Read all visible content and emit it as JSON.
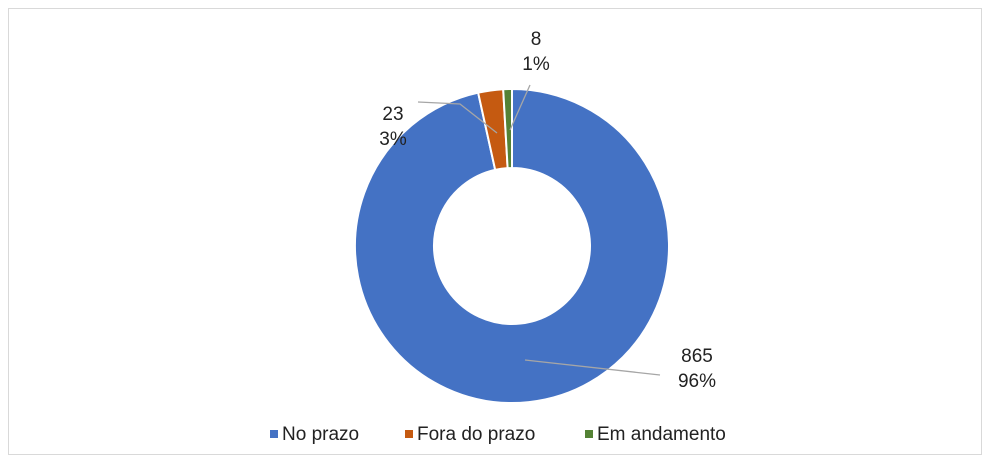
{
  "chart_data": {
    "type": "donut",
    "categories": [
      "No prazo",
      "Fora do prazo",
      "Em andamento"
    ],
    "values": [
      865,
      23,
      8
    ],
    "percent_labels": [
      "96%",
      "3%",
      "1%"
    ],
    "colors": [
      "#4472c4",
      "#c55a11",
      "#548235"
    ],
    "legend": "bottom"
  }
}
